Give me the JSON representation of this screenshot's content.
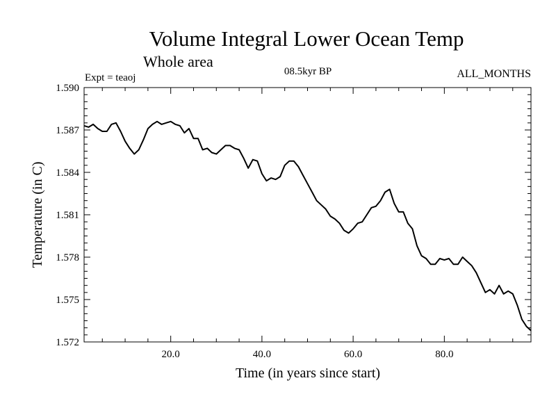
{
  "chart_data": {
    "type": "line",
    "title": "Volume Integral Lower Ocean Temp",
    "subtitle": "Whole area",
    "expt_label": "Expt = teaoj",
    "period_label": "08.5kyr BP",
    "months_label": "ALL_MONTHS",
    "xlabel": "Time (in years since start)",
    "ylabel": "Temperature (in C)",
    "xlim": [
      1,
      99
    ],
    "ylim": [
      1.572,
      1.59
    ],
    "x_ticks": [
      20,
      40,
      60,
      80
    ],
    "x_tick_labels": [
      "20.0",
      "40.0",
      "60.0",
      "80.0"
    ],
    "y_ticks": [
      1.572,
      1.575,
      1.578,
      1.581,
      1.584,
      1.587,
      1.59
    ],
    "y_tick_labels": [
      "1.572",
      "1.575",
      "1.578",
      "1.581",
      "1.584",
      "1.587",
      "1.590"
    ],
    "series": [
      {
        "name": "Volume Integral Lower Ocean Temp",
        "color": "#000000",
        "x": [
          1,
          2,
          3,
          4,
          5,
          6,
          7,
          8,
          9,
          10,
          11,
          12,
          13,
          14,
          15,
          16,
          17,
          18,
          19,
          20,
          21,
          22,
          23,
          24,
          25,
          26,
          27,
          28,
          29,
          30,
          31,
          32,
          33,
          34,
          35,
          36,
          37,
          38,
          39,
          40,
          41,
          42,
          43,
          44,
          45,
          46,
          47,
          48,
          49,
          50,
          51,
          52,
          53,
          54,
          55,
          56,
          57,
          58,
          59,
          60,
          61,
          62,
          63,
          64,
          65,
          66,
          67,
          68,
          69,
          70,
          71,
          72,
          73,
          74,
          75,
          76,
          77,
          78,
          79,
          80,
          81,
          82,
          83,
          84,
          85,
          86,
          87,
          88,
          89,
          90,
          91,
          92,
          93,
          94,
          95,
          96,
          97,
          98,
          99
        ],
        "values": [
          1.5873,
          1.5872,
          1.5874,
          1.5871,
          1.5869,
          1.5869,
          1.5874,
          1.5875,
          1.5869,
          1.5862,
          1.5857,
          1.5853,
          1.5856,
          1.5863,
          1.5871,
          1.5874,
          1.5876,
          1.5874,
          1.5875,
          1.5876,
          1.5874,
          1.5873,
          1.5868,
          1.5871,
          1.5864,
          1.5864,
          1.5856,
          1.5857,
          1.5854,
          1.5853,
          1.5856,
          1.5859,
          1.5859,
          1.5857,
          1.5856,
          1.585,
          1.5843,
          1.5849,
          1.5848,
          1.5839,
          1.5834,
          1.5836,
          1.5835,
          1.5837,
          1.5845,
          1.5848,
          1.5848,
          1.5844,
          1.5838,
          1.5832,
          1.5826,
          1.582,
          1.5817,
          1.5814,
          1.5809,
          1.5807,
          1.5804,
          1.5799,
          1.5797,
          1.58,
          1.5804,
          1.5805,
          1.581,
          1.5815,
          1.5816,
          1.582,
          1.5826,
          1.5828,
          1.5818,
          1.5812,
          1.5812,
          1.5804,
          1.58,
          1.5788,
          1.5781,
          1.5779,
          1.5775,
          1.5775,
          1.5779,
          1.5778,
          1.5779,
          1.5775,
          1.5775,
          1.578,
          1.5777,
          1.5774,
          1.5769,
          1.5762,
          1.5755,
          1.5757,
          1.5754,
          1.576,
          1.5754,
          1.5756,
          1.5754,
          1.5746,
          1.5736,
          1.5731,
          1.5728
        ]
      }
    ]
  }
}
